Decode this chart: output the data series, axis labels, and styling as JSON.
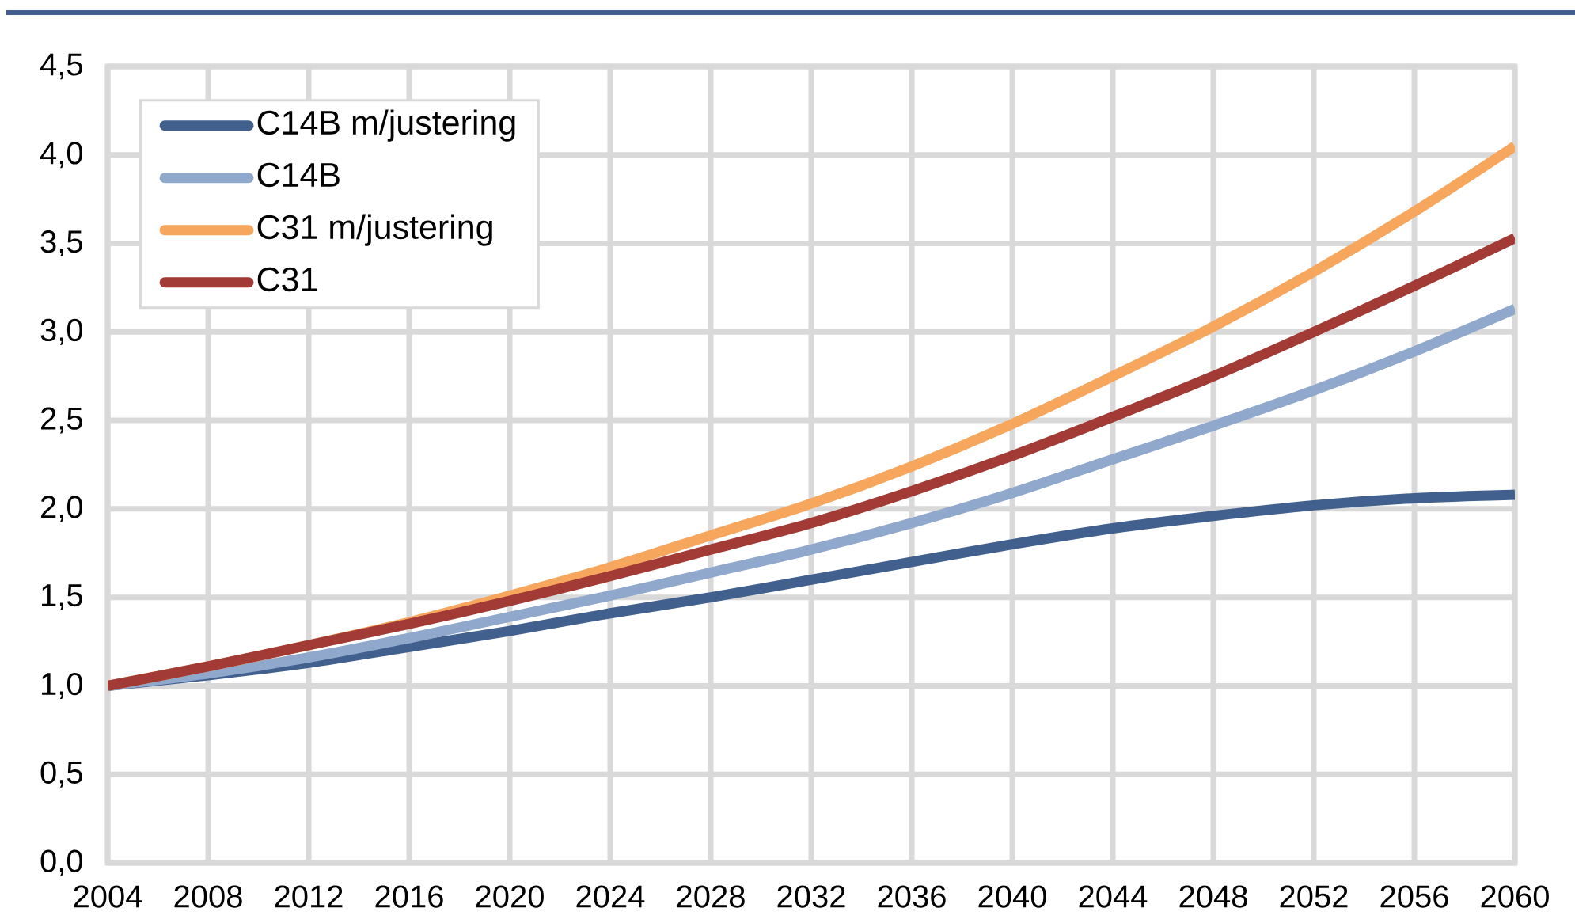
{
  "chart_data": {
    "type": "line",
    "x": [
      2004,
      2008,
      2012,
      2016,
      2020,
      2024,
      2028,
      2032,
      2036,
      2040,
      2044,
      2048,
      2052,
      2056,
      2060
    ],
    "series": [
      {
        "name": "C14B m/justering",
        "color": "#41608e",
        "values": [
          1.0,
          1.06,
          1.13,
          1.22,
          1.31,
          1.41,
          1.5,
          1.6,
          1.7,
          1.8,
          1.89,
          1.96,
          2.02,
          2.06,
          2.08
        ]
      },
      {
        "name": "C14B",
        "color": "#8fa8cc",
        "values": [
          1.0,
          1.07,
          1.16,
          1.27,
          1.39,
          1.51,
          1.64,
          1.77,
          1.92,
          2.09,
          2.28,
          2.47,
          2.67,
          2.89,
          3.13
        ]
      },
      {
        "name": "C31 m/justering",
        "color": "#f7a65e",
        "values": [
          1.0,
          1.11,
          1.23,
          1.36,
          1.51,
          1.67,
          1.85,
          2.03,
          2.24,
          2.48,
          2.75,
          3.03,
          3.34,
          3.68,
          4.05
        ]
      },
      {
        "name": "C31",
        "color": "#a23a36",
        "values": [
          1.0,
          1.11,
          1.23,
          1.35,
          1.48,
          1.62,
          1.77,
          1.92,
          2.1,
          2.3,
          2.52,
          2.75,
          3.0,
          3.26,
          3.53
        ]
      }
    ],
    "xlim": [
      2004,
      2060
    ],
    "xticks": [
      2004,
      2008,
      2012,
      2016,
      2020,
      2024,
      2028,
      2032,
      2036,
      2040,
      2044,
      2048,
      2052,
      2056,
      2060
    ],
    "ylim": [
      0,
      4.5
    ],
    "yticks": [
      {
        "value": 0,
        "label": "0,0"
      },
      {
        "value": 0.5,
        "label": "0,5"
      },
      {
        "value": 1,
        "label": "1,0"
      },
      {
        "value": 1.5,
        "label": "1,5"
      },
      {
        "value": 2,
        "label": "2,0"
      },
      {
        "value": 2.5,
        "label": "2,5"
      },
      {
        "value": 3,
        "label": "3,0"
      },
      {
        "value": 3.5,
        "label": "3,5"
      },
      {
        "value": 4,
        "label": "4,0"
      },
      {
        "value": 4.5,
        "label": "4,5"
      }
    ],
    "grid": true,
    "legend": "top left",
    "line_style": "solid",
    "marker": "none"
  }
}
